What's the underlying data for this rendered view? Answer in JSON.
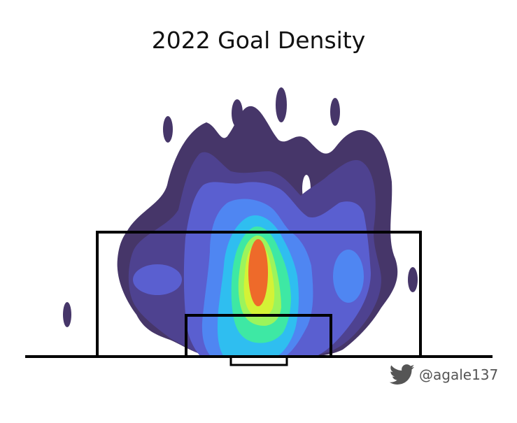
{
  "chart_data": {
    "type": "heatmap",
    "title": "2022 Goal Density",
    "subject": "Shot locations of goals on a soccer pitch (attacking half, goal at bottom)",
    "colors": {
      "level1": "#463669",
      "level2": "#4e4290",
      "level3": "#5a5fd0",
      "level4": "#4f86f2",
      "level5": "#2fbef0",
      "level6": "#3ee8a4",
      "level7": "#9cf45c",
      "level8": "#d4f236",
      "level9": "#ee6a2a",
      "lines": "#000000"
    },
    "pitch_markings": [
      "goal line",
      "penalty area",
      "goal area",
      "goal"
    ]
  },
  "credit": {
    "icon": "twitter-bird-icon",
    "handle": "@agale137",
    "color": "#555555"
  }
}
